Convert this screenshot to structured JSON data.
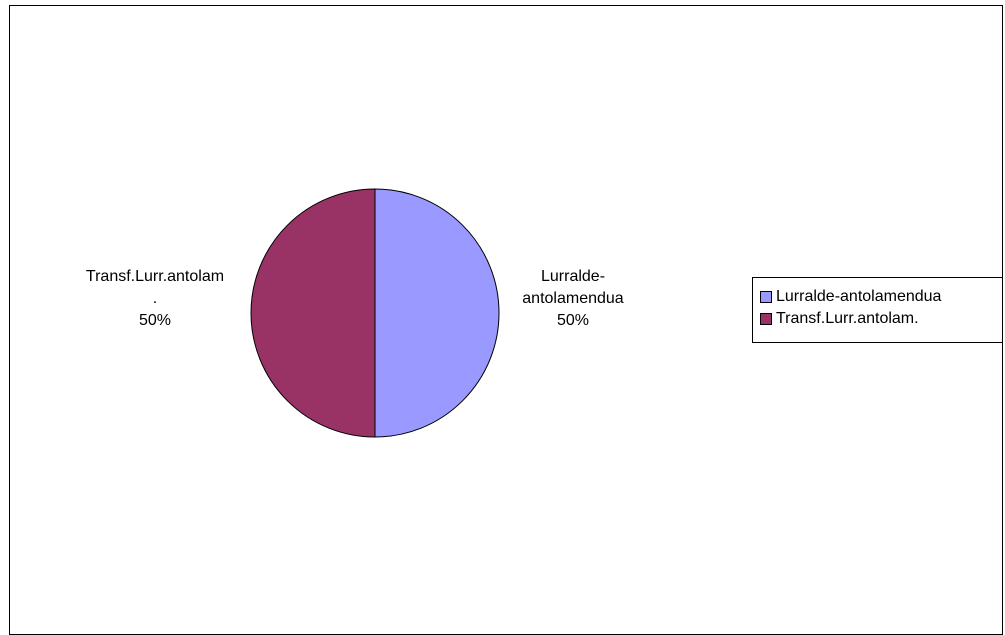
{
  "chart_data": {
    "type": "pie",
    "title": "",
    "categories": [
      "Lurralde-antolamendua",
      "Transf.Lurr.antolam."
    ],
    "values": [
      50,
      50
    ],
    "colors": [
      "#9999FF",
      "#993366"
    ],
    "labels": {
      "right": {
        "line1": "Lurralde-",
        "line2": "antolamendua",
        "line3": "50%"
      },
      "left": {
        "line1": "Transf.Lurr.antolam",
        "line2": ".",
        "line3": "50%"
      }
    },
    "legend": {
      "placement": "right",
      "items": [
        {
          "label": "Lurralde-antolamendua",
          "color": "#9999FF"
        },
        {
          "label": "Transf.Lurr.antolam.",
          "color": "#993366"
        }
      ]
    }
  }
}
